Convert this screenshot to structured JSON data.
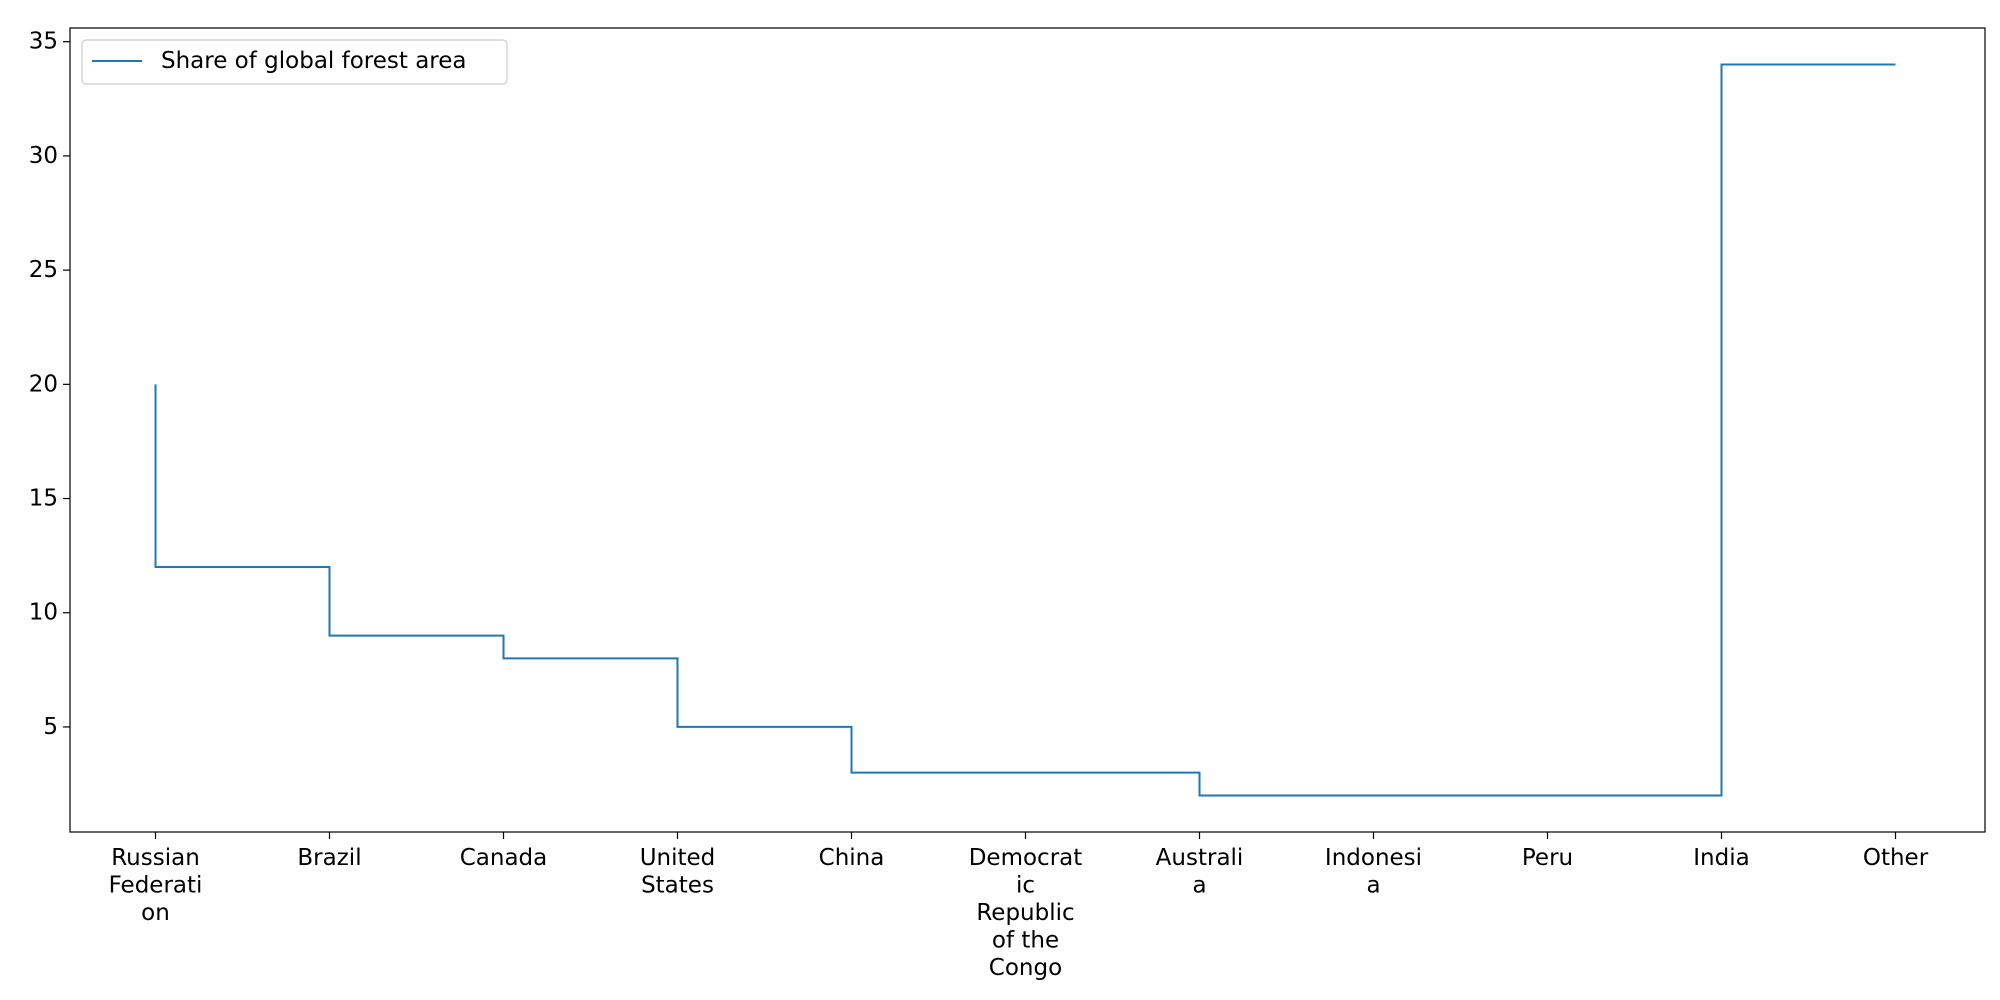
{
  "chart_data": {
    "type": "line",
    "drawstyle": "steps-pre",
    "title": "",
    "xlabel": "",
    "ylabel": "",
    "categories": [
      [
        "Russian",
        "Federati",
        "on"
      ],
      [
        "Brazil"
      ],
      [
        "Canada"
      ],
      [
        "United",
        "States"
      ],
      [
        "China"
      ],
      [
        "Democrat",
        "ic",
        "Republic",
        "of the",
        "Congo"
      ],
      [
        "Australi",
        "a"
      ],
      [
        "Indonesi",
        "a"
      ],
      [
        "Peru"
      ],
      [
        "India"
      ],
      [
        "Other"
      ]
    ],
    "series": [
      {
        "name": "Share of global forest area",
        "color": "#1f77b4",
        "values": [
          20,
          12,
          9,
          8,
          5,
          3,
          3,
          2,
          2,
          2,
          34
        ]
      }
    ],
    "yticks": [
      5,
      10,
      15,
      20,
      25,
      30,
      35
    ],
    "ylim": [
      0.4,
      35.6
    ],
    "grid": false,
    "legend": "upper-left"
  }
}
